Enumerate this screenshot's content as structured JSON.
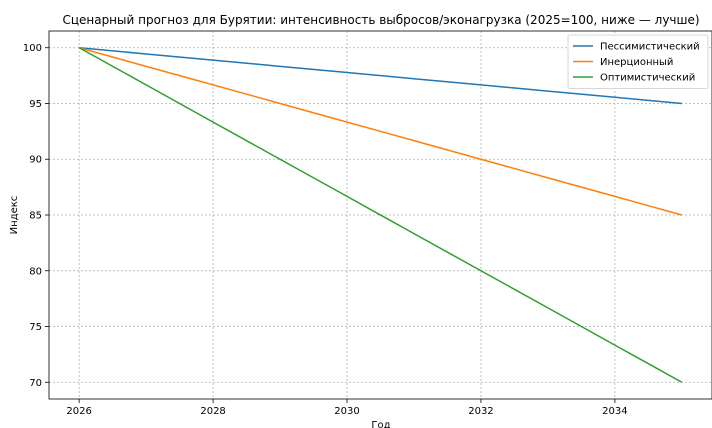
{
  "chart_data": {
    "type": "line",
    "title": "Сценарный прогноз для Бурятии: интенсивность выбросов/эконагрузка (2025=100, ниже — лучше)",
    "xlabel": "Год",
    "ylabel": "Индекс",
    "x": [
      2026,
      2027,
      2028,
      2029,
      2030,
      2031,
      2032,
      2033,
      2034,
      2035
    ],
    "xlim": [
      2025.55,
      2035.45
    ],
    "ylim": [
      68.5,
      101.5
    ],
    "xticks": [
      2026,
      2028,
      2030,
      2032,
      2034
    ],
    "yticks": [
      70,
      75,
      80,
      85,
      90,
      95,
      100
    ],
    "grid": true,
    "legend_position": "top-right",
    "series": [
      {
        "name": "Пессимистический",
        "color": "#1f77b4",
        "values": [
          100,
          99.44,
          98.89,
          98.33,
          97.78,
          97.22,
          96.67,
          96.11,
          95.56,
          95
        ]
      },
      {
        "name": "Инерционный",
        "color": "#ff7f0e",
        "values": [
          100,
          98.33,
          96.67,
          95,
          93.33,
          91.67,
          90,
          88.33,
          86.67,
          85
        ]
      },
      {
        "name": "Оптимистический",
        "color": "#2ca02c",
        "values": [
          100,
          96.67,
          93.33,
          90,
          86.67,
          83.33,
          80,
          76.67,
          73.33,
          70
        ]
      }
    ]
  }
}
